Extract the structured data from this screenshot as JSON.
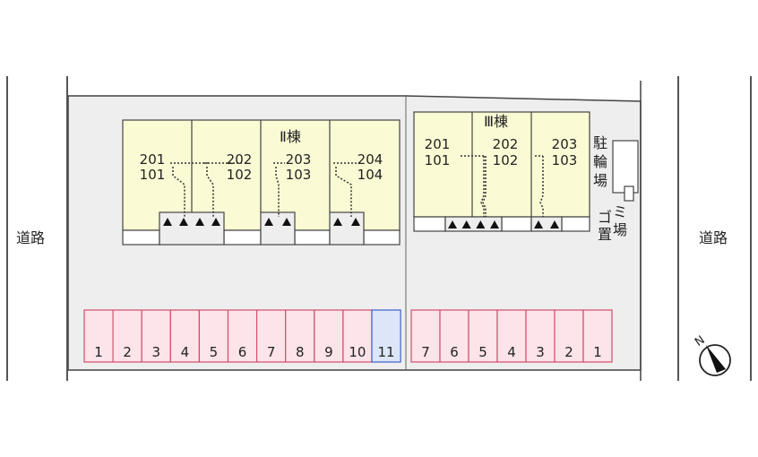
{
  "roads": {
    "left": "道路",
    "right": "道路"
  },
  "building2": {
    "name": "Ⅱ棟",
    "units": [
      {
        "upper": "201",
        "lower": "101"
      },
      {
        "upper": "202",
        "lower": "102"
      },
      {
        "upper": "203",
        "lower": "103"
      },
      {
        "upper": "204",
        "lower": "104"
      }
    ]
  },
  "building3": {
    "name": "Ⅲ棟",
    "units": [
      {
        "upper": "201",
        "lower": "101"
      },
      {
        "upper": "202",
        "lower": "102"
      },
      {
        "upper": "203",
        "lower": "103"
      }
    ]
  },
  "bicycle_parking": {
    "chars": [
      "駐",
      "輪",
      "場"
    ]
  },
  "garbage": {
    "col1": [
      "ゴ",
      "置"
    ],
    "col2": [
      "ミ",
      "場"
    ]
  },
  "parking_left": [
    "1",
    "2",
    "3",
    "4",
    "5",
    "6",
    "7",
    "8",
    "9",
    "10",
    "11"
  ],
  "parking_left_highlight": "11",
  "parking_right": [
    "7",
    "6",
    "5",
    "4",
    "3",
    "2",
    "1"
  ],
  "compass": {
    "label": "N"
  },
  "colors": {
    "lot": "#eeeeee",
    "building": "#fafad4",
    "parking": "#fde3ea",
    "parking_border": "#d0506a",
    "parking_highlight": "#dce6f8",
    "parking_highlight_border": "#3a62c8"
  }
}
